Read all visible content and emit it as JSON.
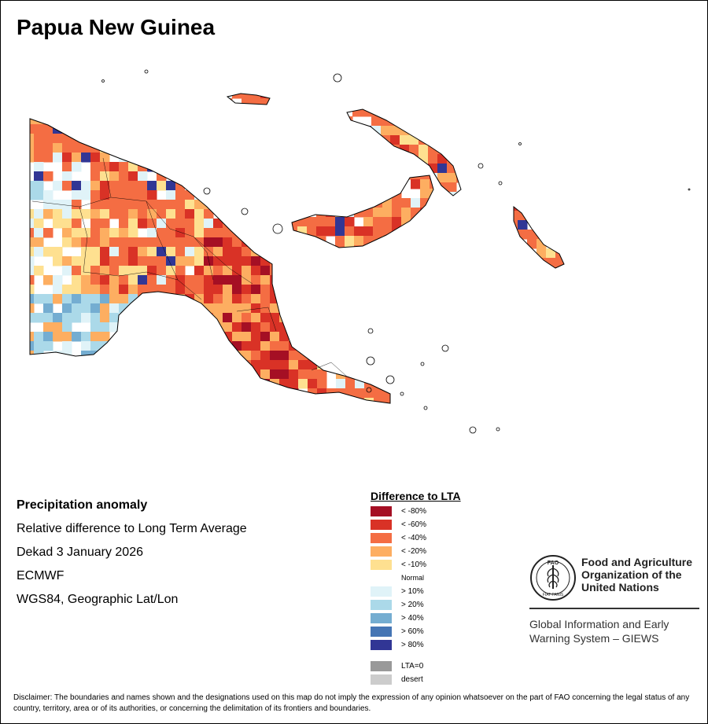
{
  "map": {
    "title": "Papua New Guinea"
  },
  "info": {
    "heading": "Precipitation anomaly",
    "subtitle": "Relative difference to Long Term Average",
    "period": "Dekad 3 January 2026",
    "source": "ECMWF",
    "projection": "WGS84, Geographic Lat/Lon"
  },
  "legend": {
    "title": "Difference to LTA",
    "dry_classes": [
      {
        "label": "< -80%",
        "color": "#a50f24"
      },
      {
        "label": "< -60%",
        "color": "#d93226"
      },
      {
        "label": "< -40%",
        "color": "#f46d43"
      },
      {
        "label": "< -20%",
        "color": "#fdae61"
      },
      {
        "label": "< -10%",
        "color": "#fee090"
      }
    ],
    "normal_label": "Normal",
    "wet_classes": [
      {
        "label": "> 10%",
        "color": "#e0f3f8"
      },
      {
        "label": "> 20%",
        "color": "#abd9e9"
      },
      {
        "label": "> 40%",
        "color": "#74add1"
      },
      {
        "label": "> 60%",
        "color": "#4575b4"
      },
      {
        "label": "> 80%",
        "color": "#313695"
      }
    ],
    "other_classes": [
      {
        "label": "LTA=0",
        "color": "#999999"
      },
      {
        "label": "desert",
        "color": "#cccccc"
      }
    ]
  },
  "organization": {
    "logo_text": "FAO",
    "logo_motto": "FIAT PANIS",
    "name_lines": [
      "Food and Agriculture",
      "Organization of the",
      "United Nations"
    ],
    "system_lines": [
      "Global Information and Early",
      "Warning System – GIEWS"
    ]
  },
  "disclaimer": "Disclaimer: The boundaries and names shown and the designations used on this map do not imply the expression of any opinion whatsoever on the part of FAO concerning the legal status of any country, territory, area or of its authorities, or concerning the delimitation of its frontiers and boundaries."
}
